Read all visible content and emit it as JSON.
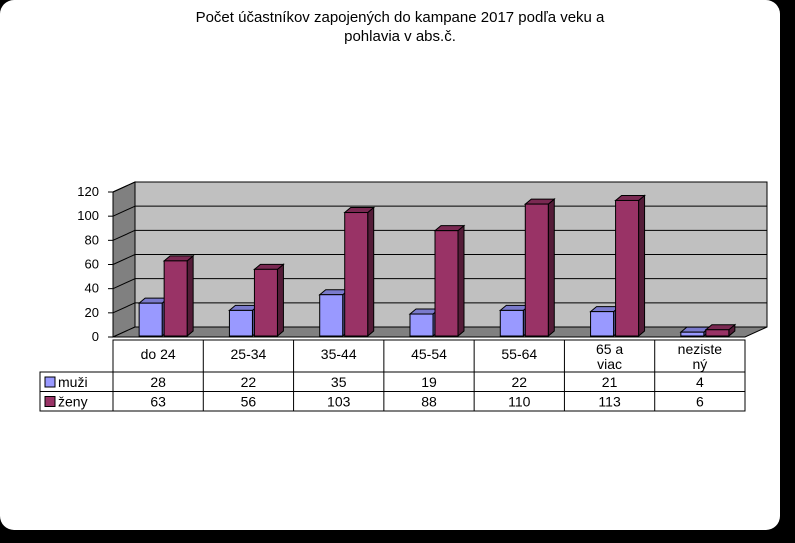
{
  "chart_data": {
    "type": "bar",
    "title": [
      "Počet účastníkov zapojených do kampane 2017 podľa veku a",
      "pohlavia v abs.č."
    ],
    "categories": [
      [
        "do 24"
      ],
      [
        "25-34"
      ],
      [
        "35-44"
      ],
      [
        "45-54"
      ],
      [
        "55-64"
      ],
      [
        "65 a",
        "viac"
      ],
      [
        "neziste",
        "ný"
      ]
    ],
    "series": [
      {
        "name": "muži",
        "values": [
          28,
          22,
          35,
          19,
          22,
          21,
          4
        ],
        "color": "#9999FF"
      },
      {
        "name": "ženy",
        "values": [
          63,
          56,
          103,
          88,
          110,
          113,
          6
        ],
        "color": "#993366"
      }
    ],
    "yticks": [
      0,
      20,
      40,
      60,
      80,
      100,
      120
    ],
    "ylim": [
      0,
      120
    ],
    "grid": true,
    "legend": "data-table",
    "colors": {
      "wall": "#C0C0C0",
      "floor": "#808080"
    }
  }
}
